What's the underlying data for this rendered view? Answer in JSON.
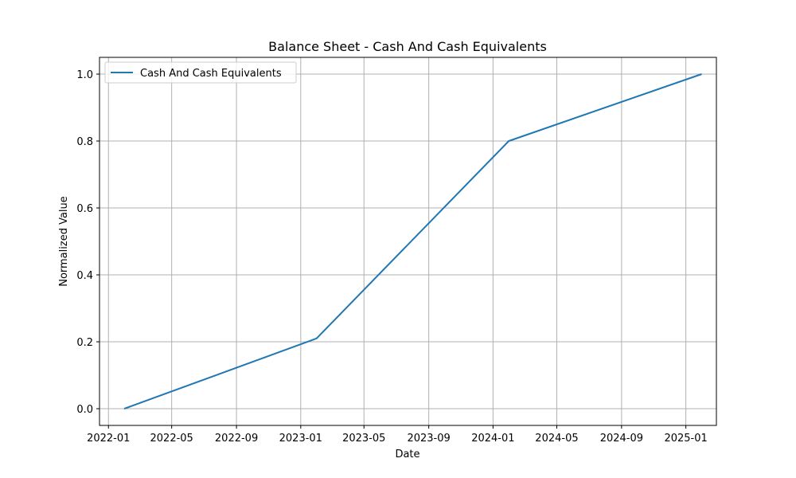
{
  "chart_data": {
    "type": "line",
    "title": "Balance Sheet - Cash And Cash Equivalents",
    "xlabel": "Date",
    "ylabel": "Normalized Value",
    "xlim": [
      "2021-12-15",
      "2025-02-28"
    ],
    "ylim": [
      -0.05,
      1.05
    ],
    "x_ticks": [
      {
        "date": "2022-01-01",
        "label": "2022-01"
      },
      {
        "date": "2022-05-01",
        "label": "2022-05"
      },
      {
        "date": "2022-09-01",
        "label": "2022-09"
      },
      {
        "date": "2023-01-01",
        "label": "2023-01"
      },
      {
        "date": "2023-05-01",
        "label": "2023-05"
      },
      {
        "date": "2023-09-01",
        "label": "2023-09"
      },
      {
        "date": "2024-01-01",
        "label": "2024-01"
      },
      {
        "date": "2024-05-01",
        "label": "2024-05"
      },
      {
        "date": "2024-09-01",
        "label": "2024-09"
      },
      {
        "date": "2025-01-01",
        "label": "2025-01"
      }
    ],
    "y_ticks": [
      {
        "value": 0.0,
        "label": "0.0"
      },
      {
        "value": 0.2,
        "label": "0.2"
      },
      {
        "value": 0.4,
        "label": "0.4"
      },
      {
        "value": 0.6,
        "label": "0.6"
      },
      {
        "value": 0.8,
        "label": "0.8"
      },
      {
        "value": 1.0,
        "label": "1.0"
      }
    ],
    "grid": true,
    "legend_position": "top-left",
    "series": [
      {
        "name": "Cash And Cash Equivalents",
        "color": "#1f77b4",
        "x": [
          "2022-01-31",
          "2023-01-31",
          "2024-01-31",
          "2025-01-31"
        ],
        "y": [
          0.0,
          0.21,
          0.8,
          1.0
        ]
      }
    ]
  }
}
